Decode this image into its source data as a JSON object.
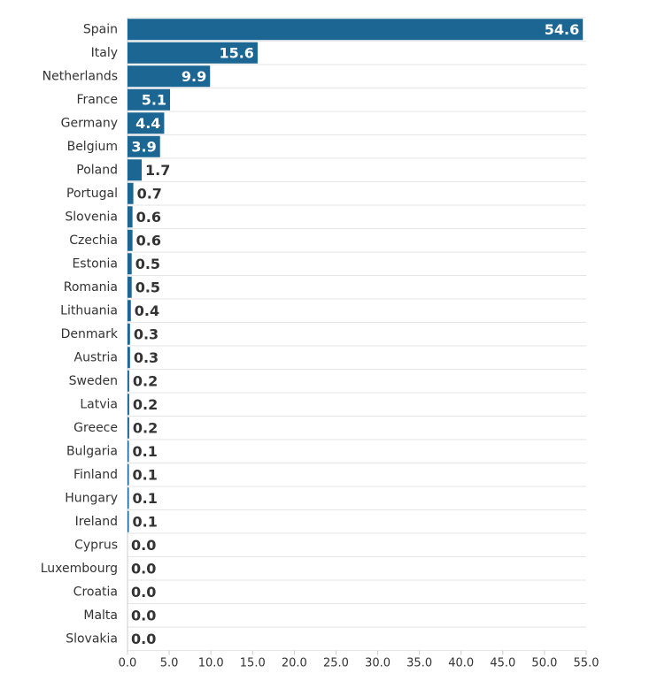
{
  "chart_data": {
    "type": "bar",
    "orientation": "horizontal",
    "title": "",
    "xlabel": "",
    "ylabel": "",
    "xlim": [
      0,
      55
    ],
    "x_ticks": [
      "0.0",
      "5.0",
      "10.0",
      "15.0",
      "20.0",
      "25.0",
      "30.0",
      "35.0",
      "40.0",
      "45.0",
      "50.0",
      "55.0"
    ],
    "grid": true,
    "bar_color": "#1c6694",
    "categories": [
      "Spain",
      "Italy",
      "Netherlands",
      "France",
      "Germany",
      "Belgium",
      "Poland",
      "Portugal",
      "Slovenia",
      "Czechia",
      "Estonia",
      "Romania",
      "Lithuania",
      "Denmark",
      "Austria",
      "Sweden",
      "Latvia",
      "Greece",
      "Bulgaria",
      "Finland",
      "Hungary",
      "Ireland",
      "Cyprus",
      "Luxembourg",
      "Croatia",
      "Malta",
      "Slovakia"
    ],
    "values": [
      54.6,
      15.6,
      9.9,
      5.1,
      4.4,
      3.9,
      1.7,
      0.7,
      0.6,
      0.6,
      0.5,
      0.5,
      0.4,
      0.3,
      0.3,
      0.2,
      0.2,
      0.2,
      0.1,
      0.1,
      0.1,
      0.1,
      0.0,
      0.0,
      0.0,
      0.0,
      0.0
    ],
    "value_labels": [
      "54.6",
      "15.6",
      "9.9",
      "5.1",
      "4.4",
      "3.9",
      "1.7",
      "0.7",
      "0.6",
      "0.6",
      "0.5",
      "0.5",
      "0.4",
      "0.3",
      "0.3",
      "0.2",
      "0.2",
      "0.2",
      "0.1",
      "0.1",
      "0.1",
      "0.1",
      "0.0",
      "0.0",
      "0.0",
      "0.0",
      "0.0"
    ]
  }
}
